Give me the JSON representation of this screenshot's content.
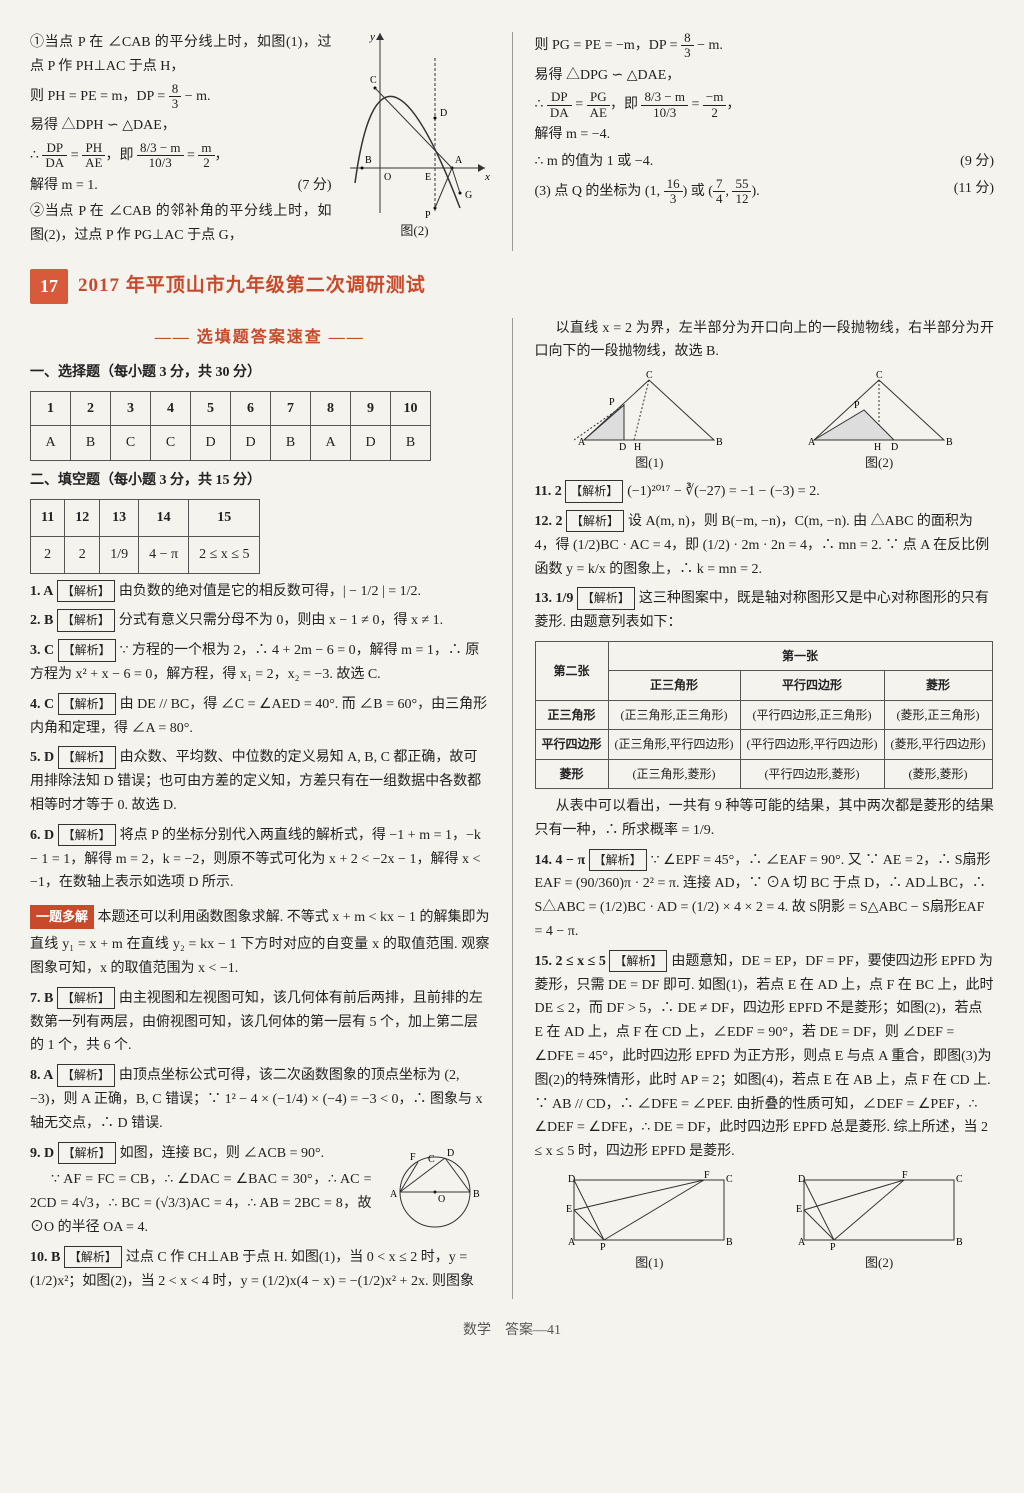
{
  "top": {
    "left": {
      "l1": "①当点 P 在 ∠CAB 的平分线上时，如图(1)，过点 P 作 PH⊥AC 于点 H，",
      "l2a": "则 PH = PE = m，DP = ",
      "l2f_n": "8",
      "l2f_d": "3",
      "l2b": " − m.",
      "l3": "易得 △DPH ∽ △DAE，",
      "l4a": "∴ ",
      "l4f1_n": "DP",
      "l4f1_d": "DA",
      "l4b": " = ",
      "l4f2_n": "PH",
      "l4f2_d": "AE",
      "l4c": "，即 ",
      "l4f3_n": "8/3 − m",
      "l4f3_d": "10/3",
      "l4d": " = ",
      "l4f4_n": "m",
      "l4f4_d": "2",
      "l4e": "，",
      "l5": "解得 m = 1.",
      "l5p": "(7 分)",
      "l6": "②当点 P 在 ∠CAB 的邻补角的平分线上时，如图(2)，过点 P 作 PG⊥AC 于点 G，",
      "figcap": "图(2)"
    },
    "right": {
      "r1a": "则 PG = PE = −m，DP = ",
      "r1f_n": "8",
      "r1f_d": "3",
      "r1b": " − m.",
      "r2": "易得 △DPG ∽ △DAE，",
      "r3a": "∴ ",
      "r3f1_n": "DP",
      "r3f1_d": "DA",
      "r3b": " = ",
      "r3f2_n": "PG",
      "r3f2_d": "AE",
      "r3c": "，即 ",
      "r3f3_n": "8/3 − m",
      "r3f3_d": "10/3",
      "r3d": " = ",
      "r3f4_n": "−m",
      "r3f4_d": "2",
      "r3e": "，",
      "r4": "解得 m = −4.",
      "r5": "∴ m 的值为 1 或 −4.",
      "r5p": "(9 分)",
      "r6a": "(3) 点 Q 的坐标为 (1, ",
      "r6f1_n": "16",
      "r6f1_d": "3",
      "r6b": ") 或 (",
      "r6f2_n": "7",
      "r6f2_d": "4",
      "r6c": ", ",
      "r6f3_n": "55",
      "r6f3_d": "12",
      "r6d": ").",
      "r6p": "(11 分)"
    }
  },
  "header": {
    "num": "17",
    "title": "2017 年平顶山市九年级第二次调研测试"
  },
  "quick": {
    "title": "—— 选填题答案速查 ——"
  },
  "section1": "一、选择题（每小题 3 分，共 30 分）",
  "choice": {
    "nums": [
      "1",
      "2",
      "3",
      "4",
      "5",
      "6",
      "7",
      "8",
      "9",
      "10"
    ],
    "ans": [
      "A",
      "B",
      "C",
      "C",
      "D",
      "D",
      "B",
      "A",
      "D",
      "B"
    ]
  },
  "section2": "二、填空题（每小题 3 分，共 15 分）",
  "fill": {
    "nums": [
      "11",
      "12",
      "13",
      "14",
      "15"
    ],
    "ans": [
      "2",
      "2",
      "1/9",
      "4 − π",
      "2 ≤ x ≤ 5"
    ]
  },
  "expl": {
    "q1": {
      "no": "1. A",
      "tag": "【解析】",
      "t": "由负数的绝对值是它的相反数可得，| − 1/2 | = 1/2."
    },
    "q2": {
      "no": "2. B",
      "tag": "【解析】",
      "t": "分式有意义只需分母不为 0，则由 x − 1 ≠ 0，得 x ≠ 1."
    },
    "q3": {
      "no": "3. C",
      "tag": "【解析】",
      "t": "∵ 方程的一个根为 2，∴ 4 + 2m − 6 = 0，解得 m = 1，∴ 原方程为 x² + x − 6 = 0，解方程，得 x₁ = 2，x₂ = −3. 故选 C."
    },
    "q4": {
      "no": "4. C",
      "tag": "【解析】",
      "t": "由 DE // BC，得 ∠C = ∠AED = 40°. 而 ∠B = 60°，由三角形内角和定理，得 ∠A = 80°."
    },
    "q5": {
      "no": "5. D",
      "tag": "【解析】",
      "t": "由众数、平均数、中位数的定义易知 A, B, C 都正确，故可用排除法知 D 错误；也可由方差的定义知，方差只有在一组数据中各数都相等时才等于 0. 故选 D."
    },
    "q6": {
      "no": "6. D",
      "tag": "【解析】",
      "t": "将点 P 的坐标分别代入两直线的解析式，得 −1 + m = 1，−k − 1 = 1，解得 m = 2，k = −2，则原不等式可化为 x + 2 < −2x − 1，解得 x < −1，在数轴上表示如选项 D 所示."
    },
    "q6box": "一题多解",
    "q6b": "本题还可以利用函数图象求解. 不等式 x + m < kx − 1 的解集即为直线 y₁ = x + m 在直线 y₂ = kx − 1 下方时对应的自变量 x 的取值范围. 观察图象可知，x 的取值范围为 x < −1.",
    "q7": {
      "no": "7. B",
      "tag": "【解析】",
      "t": "由主视图和左视图可知，该几何体有前后两排，且前排的左数第一列有两层，由俯视图可知，该几何体的第一层有 5 个，加上第二层的 1 个，共 6 个."
    },
    "q8": {
      "no": "8. A",
      "tag": "【解析】",
      "t": "由顶点坐标公式可得，该二次函数图象的顶点坐标为 (2, −3)，则 A 正确，B, C 错误；∵ 1² − 4 × (−1/4) × (−4) = −3 < 0，∴ 图象与 x 轴无交点，∴ D 错误."
    },
    "q9": {
      "no": "9. D",
      "tag": "【解析】",
      "t": "如图，连接 BC，则 ∠ACB = 90°.",
      "t2": "∵ AF = FC = CB，∴ ∠DAC = ∠BAC = 30°，∴ AC = 2CD = 4√3，∴ BC = (√3/3)AC = 4，∴ AB = 2BC = 8，故 ⊙O 的半径 OA = 4."
    },
    "q10": {
      "no": "10. B",
      "tag": "【解析】",
      "t": "过点 C 作 CH⊥AB 于点 H. 如图(1)，当 0 < x ≤ 2 时，y = (1/2)x²；如图(2)，当 2 < x < 4 时，y = (1/2)x(4 − x) = −(1/2)x² + 2x. 则图象"
    }
  },
  "rightcol": {
    "r10c": "以直线 x = 2 为界，左半部分为开口向上的一段抛物线，右半部分为开口向下的一段抛物线，故选 B.",
    "fig1": "图(1)",
    "fig2": "图(2)",
    "q11": {
      "no": "11. 2",
      "tag": "【解析】",
      "t": "(−1)²⁰¹⁷ − ∛(−27) = −1 − (−3) = 2."
    },
    "q12": {
      "no": "12. 2",
      "tag": "【解析】",
      "t": "设 A(m, n)，则 B(−m, −n)，C(m, −n). 由 △ABC 的面积为 4，得 (1/2)BC · AC = 4，即 (1/2) · 2m · 2n = 4，∴ mn = 2. ∵ 点 A 在反比例函数 y = k/x 的图象上，∴ k = mn = 2."
    },
    "q13": {
      "no": "13. 1/9",
      "tag": "【解析】",
      "t": "这三种图案中，既是轴对称图形又是中心对称图形的只有菱形. 由题意列表如下："
    },
    "tbl": {
      "c0": "第二张",
      "c1": "第一张",
      "h": [
        "正三角形",
        "平行四边形",
        "菱形"
      ],
      "rows": [
        [
          "正三角形",
          "(正三角形,正三角形)",
          "(平行四边形,正三角形)",
          "(菱形,正三角形)"
        ],
        [
          "平行四边形",
          "(正三角形,平行四边形)",
          "(平行四边形,平行四边形)",
          "(菱形,平行四边形)"
        ],
        [
          "菱形",
          "(正三角形,菱形)",
          "(平行四边形,菱形)",
          "(菱形,菱形)"
        ]
      ]
    },
    "q13b": "从表中可以看出，一共有 9 种等可能的结果，其中两次都是菱形的结果只有一种，∴ 所求概率 = 1/9.",
    "q14": {
      "no": "14. 4 − π",
      "tag": "【解析】",
      "t": "∵ ∠EPF = 45°，∴ ∠EAF = 90°. 又 ∵ AE = 2，∴ S扇形EAF = (90/360)π · 2² = π. 连接 AD，∵ ⊙A 切 BC 于点 D，∴ AD⊥BC，∴ S△ABC = (1/2)BC · AD = (1/2) × 4 × 2 = 4. 故 S阴影 = S△ABC − S扇形EAF = 4 − π."
    },
    "q15": {
      "no": "15. 2 ≤ x ≤ 5",
      "tag": "【解析】",
      "t": "由题意知，DE = EP，DF = PF，要使四边形 EPFD 为菱形，只需 DE = DF 即可. 如图(1)，若点 E 在 AD 上，点 F 在 BC 上，此时 DE ≤ 2，而 DF > 5，∴ DE ≠ DF，四边形 EPFD 不是菱形；如图(2)，若点 E 在 AD 上，点 F 在 CD 上，∠EDF = 90°，若 DE = DF，则 ∠DEF = ∠DFE = 45°，此时四边形 EPFD 为正方形，则点 E 与点 A 重合，即图(3)为图(2)的特殊情形，此时 AP = 2；如图(4)，若点 E 在 AB 上，点 F 在 CD 上. ∵ AB // CD，∴ ∠DFE = ∠PEF. 由折叠的性质可知，∠DEF = ∠PEF，∴ ∠DEF = ∠DFE，∴ DE = DF，此时四边形 EPFD 总是菱形. 综上所述，当 2 ≤ x ≤ 5 时，四边形 EPFD 是菱形."
    },
    "fig3": "图(1)",
    "fig4": "图(2)"
  },
  "footer": "数学　答案—41"
}
